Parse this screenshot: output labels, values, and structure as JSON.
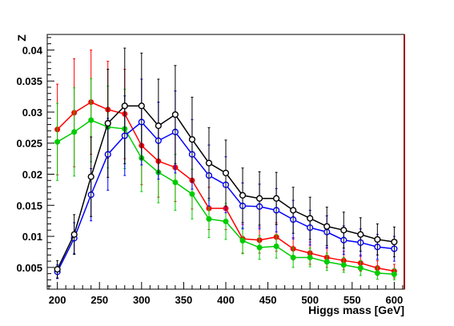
{
  "chart_data": {
    "type": "line",
    "xlabel": "Higgs mass [GeV]",
    "ylabel": "Z",
    "xlim": [
      188,
      612
    ],
    "ylim": [
      0.0015,
      0.0425
    ],
    "x_ticks": [
      200,
      250,
      300,
      350,
      400,
      450,
      500,
      550,
      600
    ],
    "x_tick_labels": [
      "200",
      "250",
      "300",
      "350",
      "400",
      "450",
      "500",
      "550",
      "600"
    ],
    "y_ticks": [
      0.005,
      0.01,
      0.015,
      0.02,
      0.025,
      0.03,
      0.035,
      0.04
    ],
    "y_tick_labels": [
      "0.005",
      "0.01",
      "0.015",
      "0.02",
      "0.025",
      "0.03",
      "0.035",
      "0.04"
    ],
    "grid": false,
    "x": [
      200,
      220,
      240,
      260,
      280,
      300,
      320,
      340,
      360,
      380,
      400,
      420,
      440,
      460,
      480,
      500,
      520,
      540,
      560,
      580,
      600
    ],
    "series": [
      {
        "color": "#ff0000",
        "marker": "filled-circle",
        "values": [
          0.0272,
          0.0299,
          0.0316,
          0.0304,
          0.0297,
          0.0246,
          0.0221,
          0.0211,
          0.019,
          0.0145,
          0.0145,
          0.0096,
          0.0094,
          0.0099,
          0.008,
          0.0073,
          0.0066,
          0.0061,
          0.0057,
          0.0049,
          0.0044
        ],
        "errors": [
          0.0073,
          0.0087,
          0.0084,
          0.0078,
          0.0072,
          0.0063,
          0.0058,
          0.0055,
          0.0046,
          0.0034,
          0.0034,
          0.0023,
          0.0021,
          0.0023,
          0.0018,
          0.0018,
          0.0016,
          0.0015,
          0.0013,
          0.0012,
          0.0011
        ]
      },
      {
        "color": "#00cc00",
        "marker": "filled-circle",
        "values": [
          0.0252,
          0.0268,
          0.0287,
          0.0276,
          0.0273,
          0.0226,
          0.0203,
          0.0187,
          0.0168,
          0.0128,
          0.0124,
          0.0093,
          0.0082,
          0.0084,
          0.0066,
          0.0066,
          0.0059,
          0.0054,
          0.0049,
          0.0041,
          0.0039
        ],
        "errors": [
          0.0062,
          0.0071,
          0.0067,
          0.0066,
          0.0064,
          0.0054,
          0.0049,
          0.0045,
          0.004,
          0.003,
          0.0029,
          0.0021,
          0.0019,
          0.0019,
          0.0016,
          0.0015,
          0.0014,
          0.0012,
          0.0012,
          0.001,
          0.0009
        ]
      },
      {
        "color": "#0000ff",
        "marker": "open-circle",
        "values": [
          0.0043,
          0.0097,
          0.0167,
          0.0232,
          0.0262,
          0.0284,
          0.0254,
          0.0268,
          0.0232,
          0.0198,
          0.0183,
          0.0149,
          0.0148,
          0.0142,
          0.0127,
          0.0114,
          0.0107,
          0.0094,
          0.009,
          0.0083,
          0.008
        ],
        "errors": [
          0.0011,
          0.0025,
          0.0042,
          0.0058,
          0.0064,
          0.0069,
          0.0062,
          0.0066,
          0.0056,
          0.0049,
          0.0045,
          0.0037,
          0.0036,
          0.0035,
          0.0031,
          0.0028,
          0.0026,
          0.0023,
          0.0022,
          0.002,
          0.002
        ]
      },
      {
        "color": "#000000",
        "marker": "open-circle",
        "values": [
          0.0047,
          0.0103,
          0.0196,
          0.0282,
          0.031,
          0.031,
          0.0278,
          0.0296,
          0.0256,
          0.0218,
          0.0202,
          0.0166,
          0.0161,
          0.0161,
          0.0142,
          0.0129,
          0.0116,
          0.011,
          0.0103,
          0.0095,
          0.0091
        ],
        "errors": [
          0.0014,
          0.0032,
          0.0064,
          0.0087,
          0.0093,
          0.0085,
          0.0075,
          0.0079,
          0.0068,
          0.0057,
          0.0053,
          0.0044,
          0.0043,
          0.0042,
          0.0037,
          0.0034,
          0.0031,
          0.0029,
          0.0027,
          0.0025,
          0.0024
        ]
      }
    ]
  }
}
